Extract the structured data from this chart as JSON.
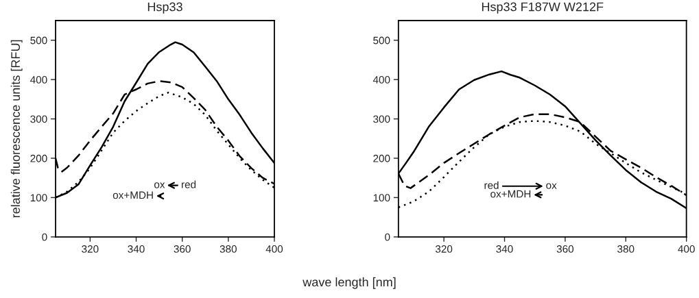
{
  "chart_data": [
    {
      "type": "line",
      "title": "Hsp33",
      "ylabel": "relative fluorescence units [RFU]",
      "xlabel": "wave length [nm]",
      "xlim": [
        305,
        400
      ],
      "xticks": [
        320,
        340,
        360,
        380,
        400
      ],
      "ylim": [
        0,
        550
      ],
      "yticks": [
        0,
        100,
        200,
        300,
        400,
        500
      ],
      "grid": false,
      "annotations": [
        "ox",
        "red",
        "ox+MDH"
      ],
      "series": [
        {
          "color": "#000000",
          "line_style": "solid",
          "x": [
            305,
            310,
            315,
            320,
            325,
            330,
            335,
            340,
            345,
            350,
            355,
            357,
            360,
            365,
            370,
            375,
            380,
            385,
            390,
            395,
            400
          ],
          "values": [
            100,
            112,
            134,
            182,
            228,
            280,
            345,
            392,
            440,
            470,
            489,
            495,
            489,
            469,
            433,
            396,
            350,
            310,
            265,
            225,
            188
          ]
        },
        {
          "color": "#000000",
          "line_style": "dashed",
          "x": [
            305,
            306,
            307.5,
            310,
            315,
            320,
            325,
            330,
            335,
            340,
            342,
            345,
            350,
            355,
            360,
            365,
            370,
            375,
            380,
            385,
            390,
            395,
            400
          ],
          "values": [
            200,
            176,
            165,
            176,
            207,
            245,
            280,
            314,
            362,
            375,
            381,
            390,
            396,
            393,
            381,
            353,
            323,
            280,
            245,
            205,
            175,
            150,
            135
          ]
        },
        {
          "color": "#000000",
          "line_style": "dotted",
          "x": [
            305,
            310,
            315,
            320,
            325,
            330,
            335,
            340,
            345,
            350,
            354,
            360,
            365,
            370,
            375,
            380,
            385,
            390,
            395,
            400
          ],
          "values": [
            100,
            115,
            140,
            175,
            220,
            265,
            295,
            320,
            340,
            358,
            367,
            355,
            338,
            310,
            270,
            235,
            200,
            170,
            145,
            125
          ]
        }
      ]
    },
    {
      "type": "line",
      "title": "Hsp33 F187W W212F",
      "xlim": [
        305,
        400
      ],
      "xticks": [
        320,
        340,
        360,
        380,
        400
      ],
      "ylim": [
        0,
        550
      ],
      "yticks": [
        0,
        100,
        200,
        300,
        400,
        500
      ],
      "grid": false,
      "annotations": [
        "red",
        "ox",
        "ox+MDH"
      ],
      "series": [
        {
          "color": "#000000",
          "line_style": "solid",
          "x": [
            305,
            307.5,
            310,
            315,
            320,
            325,
            330,
            335,
            339,
            342,
            345,
            350,
            355,
            360,
            365,
            370,
            375,
            380,
            385,
            390,
            395,
            400
          ],
          "values": [
            161,
            188,
            216,
            280,
            329,
            375,
            399,
            413,
            421,
            412,
            405,
            385,
            362,
            332,
            289,
            246,
            207,
            170,
            139,
            115,
            97,
            73
          ]
        },
        {
          "color": "#000000",
          "line_style": "dashed",
          "x": [
            305,
            307,
            309,
            315,
            320,
            325,
            330,
            335,
            340,
            345,
            350,
            355,
            360,
            365,
            370,
            375,
            380,
            385,
            390,
            395,
            400
          ],
          "values": [
            161,
            130,
            124,
            157,
            188,
            213,
            237,
            261,
            283,
            304,
            312,
            312,
            304,
            292,
            255,
            219,
            197,
            176,
            152,
            130,
            106
          ]
        },
        {
          "color": "#000000",
          "line_style": "dotted",
          "x": [
            305,
            310,
            315,
            320,
            325,
            330,
            335,
            340,
            345,
            350,
            355,
            360,
            365,
            370,
            375,
            380,
            385,
            390,
            395,
            400
          ],
          "values": [
            75,
            90,
            115,
            152,
            191,
            228,
            261,
            280,
            292,
            295,
            292,
            283,
            268,
            237,
            213,
            188,
            164,
            145,
            127,
            109
          ]
        }
      ]
    }
  ]
}
